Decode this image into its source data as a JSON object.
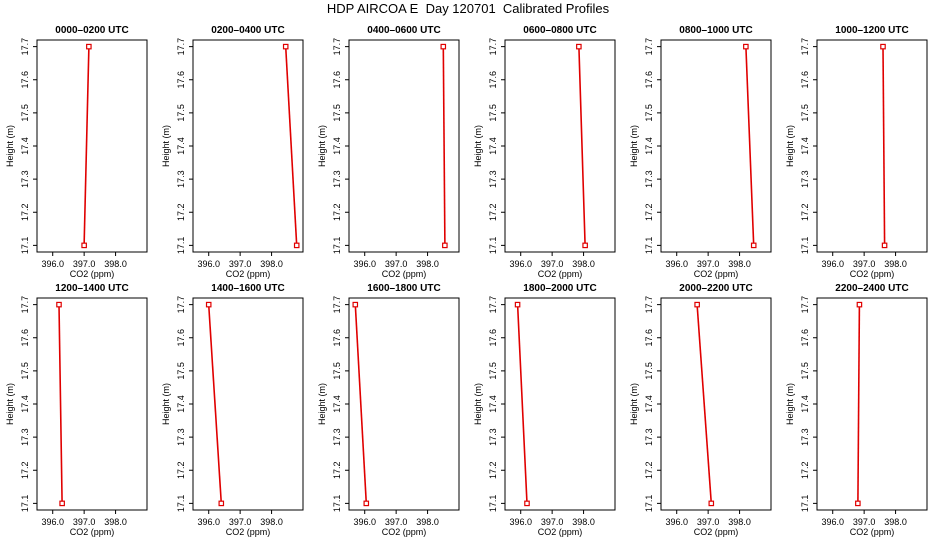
{
  "title": "HDP AIRCOA E  Day 120701  Calibrated Profiles",
  "colors": {
    "series": "#e00000",
    "axis": "#000000"
  },
  "chart_data": [
    {
      "type": "line",
      "title": "0000–0200 UTC",
      "xlabel": "CO2 (ppm)",
      "ylabel": "Height (m)",
      "xlim": [
        395.5,
        399.0
      ],
      "ylim": [
        17.08,
        17.72
      ],
      "xticks": [
        "396.0",
        "397.0",
        "398.0"
      ],
      "yticks": [
        "17.1",
        "17.2",
        "17.3",
        "17.4",
        "17.5",
        "17.6",
        "17.7"
      ],
      "x": [
        397.0,
        397.15
      ],
      "y": [
        17.1,
        17.7
      ]
    },
    {
      "type": "line",
      "title": "0200–0400 UTC",
      "xlabel": "CO2 (ppm)",
      "ylabel": "Height (m)",
      "xlim": [
        395.5,
        399.0
      ],
      "ylim": [
        17.08,
        17.72
      ],
      "xticks": [
        "396.0",
        "397.0",
        "398.0"
      ],
      "yticks": [
        "17.1",
        "17.2",
        "17.3",
        "17.4",
        "17.5",
        "17.6",
        "17.7"
      ],
      "x": [
        398.8,
        398.45
      ],
      "y": [
        17.1,
        17.7
      ]
    },
    {
      "type": "line",
      "title": "0400–0600 UTC",
      "xlabel": "CO2 (ppm)",
      "ylabel": "Height (m)",
      "xlim": [
        395.5,
        399.0
      ],
      "ylim": [
        17.08,
        17.72
      ],
      "xticks": [
        "396.0",
        "397.0",
        "398.0"
      ],
      "yticks": [
        "17.1",
        "17.2",
        "17.3",
        "17.4",
        "17.5",
        "17.6",
        "17.7"
      ],
      "x": [
        398.55,
        398.5
      ],
      "y": [
        17.1,
        17.7
      ]
    },
    {
      "type": "line",
      "title": "0600–0800 UTC",
      "xlabel": "CO2 (ppm)",
      "ylabel": "Height (m)",
      "xlim": [
        395.5,
        399.0
      ],
      "ylim": [
        17.08,
        17.72
      ],
      "xticks": [
        "396.0",
        "397.0",
        "398.0"
      ],
      "yticks": [
        "17.1",
        "17.2",
        "17.3",
        "17.4",
        "17.5",
        "17.6",
        "17.7"
      ],
      "x": [
        398.05,
        397.85
      ],
      "y": [
        17.1,
        17.7
      ]
    },
    {
      "type": "line",
      "title": "0800–1000 UTC",
      "xlabel": "CO2 (ppm)",
      "ylabel": "Height (m)",
      "xlim": [
        395.5,
        399.0
      ],
      "ylim": [
        17.08,
        17.72
      ],
      "xticks": [
        "396.0",
        "397.0",
        "398.0"
      ],
      "yticks": [
        "17.1",
        "17.2",
        "17.3",
        "17.4",
        "17.5",
        "17.6",
        "17.7"
      ],
      "x": [
        398.45,
        398.2
      ],
      "y": [
        17.1,
        17.7
      ]
    },
    {
      "type": "line",
      "title": "1000–1200 UTC",
      "xlabel": "CO2 (ppm)",
      "ylabel": "Height (m)",
      "xlim": [
        395.5,
        399.0
      ],
      "ylim": [
        17.08,
        17.72
      ],
      "xticks": [
        "396.0",
        "397.0",
        "398.0"
      ],
      "yticks": [
        "17.1",
        "17.2",
        "17.3",
        "17.4",
        "17.5",
        "17.6",
        "17.7"
      ],
      "x": [
        397.65,
        397.6
      ],
      "y": [
        17.1,
        17.7
      ]
    },
    {
      "type": "line",
      "title": "1200–1400 UTC",
      "xlabel": "CO2 (ppm)",
      "ylabel": "Height (m)",
      "xlim": [
        395.5,
        399.0
      ],
      "ylim": [
        17.08,
        17.72
      ],
      "xticks": [
        "396.0",
        "397.0",
        "398.0"
      ],
      "yticks": [
        "17.1",
        "17.2",
        "17.3",
        "17.4",
        "17.5",
        "17.6",
        "17.7"
      ],
      "x": [
        396.3,
        396.2
      ],
      "y": [
        17.1,
        17.7
      ]
    },
    {
      "type": "line",
      "title": "1400–1600 UTC",
      "xlabel": "CO2 (ppm)",
      "ylabel": "Height (m)",
      "xlim": [
        395.5,
        399.0
      ],
      "ylim": [
        17.08,
        17.72
      ],
      "xticks": [
        "396.0",
        "397.0",
        "398.0"
      ],
      "yticks": [
        "17.1",
        "17.2",
        "17.3",
        "17.4",
        "17.5",
        "17.6",
        "17.7"
      ],
      "x": [
        396.4,
        396.0
      ],
      "y": [
        17.1,
        17.7
      ]
    },
    {
      "type": "line",
      "title": "1600–1800 UTC",
      "xlabel": "CO2 (ppm)",
      "ylabel": "Height (m)",
      "xlim": [
        395.5,
        399.0
      ],
      "ylim": [
        17.08,
        17.72
      ],
      "xticks": [
        "396.0",
        "397.0",
        "398.0"
      ],
      "yticks": [
        "17.1",
        "17.2",
        "17.3",
        "17.4",
        "17.5",
        "17.6",
        "17.7"
      ],
      "x": [
        396.05,
        395.7
      ],
      "y": [
        17.1,
        17.7
      ]
    },
    {
      "type": "line",
      "title": "1800–2000 UTC",
      "xlabel": "CO2 (ppm)",
      "ylabel": "Height (m)",
      "xlim": [
        395.5,
        399.0
      ],
      "ylim": [
        17.08,
        17.72
      ],
      "xticks": [
        "396.0",
        "397.0",
        "398.0"
      ],
      "yticks": [
        "17.1",
        "17.2",
        "17.3",
        "17.4",
        "17.5",
        "17.6",
        "17.7"
      ],
      "x": [
        396.2,
        395.9
      ],
      "y": [
        17.1,
        17.7
      ]
    },
    {
      "type": "line",
      "title": "2000–2200 UTC",
      "xlabel": "CO2 (ppm)",
      "ylabel": "Height (m)",
      "xlim": [
        395.5,
        399.0
      ],
      "ylim": [
        17.08,
        17.72
      ],
      "xticks": [
        "396.0",
        "397.0",
        "398.0"
      ],
      "yticks": [
        "17.1",
        "17.2",
        "17.3",
        "17.4",
        "17.5",
        "17.6",
        "17.7"
      ],
      "x": [
        397.1,
        396.65
      ],
      "y": [
        17.1,
        17.7
      ]
    },
    {
      "type": "line",
      "title": "2200–2400 UTC",
      "xlabel": "CO2 (ppm)",
      "ylabel": "Height (m)",
      "xlim": [
        395.5,
        399.0
      ],
      "ylim": [
        17.08,
        17.72
      ],
      "xticks": [
        "396.0",
        "397.0",
        "398.0"
      ],
      "yticks": [
        "17.1",
        "17.2",
        "17.3",
        "17.4",
        "17.5",
        "17.6",
        "17.7"
      ],
      "x": [
        396.8,
        396.85
      ],
      "y": [
        17.1,
        17.7
      ]
    }
  ]
}
